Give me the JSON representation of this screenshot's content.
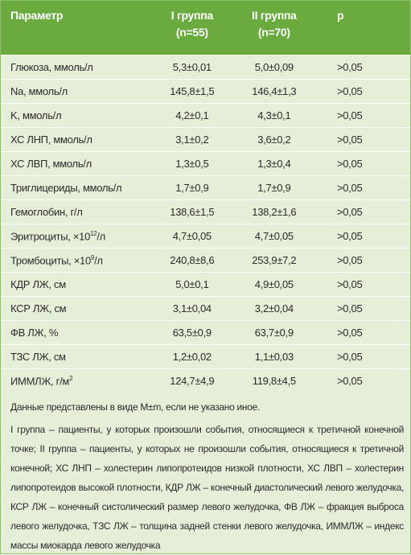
{
  "table": {
    "header": [
      "Параметр",
      "I группа",
      "(n=55)",
      "II группа",
      "(n=70)",
      "p"
    ],
    "rows": [
      [
        "Глюкоза, ммоль/л",
        "5,3±0,01",
        "5,0±0,09",
        ">0,05"
      ],
      [
        "Na, ммоль/л",
        "145,8±1,5",
        "146,4±1,3",
        ">0,05"
      ],
      [
        "K, ммоль/л",
        "4,2±0,1",
        "4,3±0,1",
        ">0,05"
      ],
      [
        "ХС ЛНП, ммоль/л",
        "3,1±0,2",
        "3,6±0,2",
        ">0,05"
      ],
      [
        "ХС ЛВП, ммоль/л",
        "1,3±0,5",
        "1,3±0,4",
        ">0,05"
      ],
      [
        "Триглицериды, ммоль/л",
        "1,7±0,9",
        "1,7±0,9",
        ">0,05"
      ],
      [
        "Гемоглобин, г/л",
        "138,6±1,5",
        "138,2±1,6",
        ">0,05"
      ],
      [
        {
          "base": "Эритроциты, ×10",
          "sup": "12",
          "tail": "/л"
        },
        "4,7±0,05",
        "4,7±0,05",
        ">0,05"
      ],
      [
        {
          "base": "Тромбоциты, ×10",
          "sup": "9",
          "tail": "/л"
        },
        "240,8±8,6",
        "253,9±7,2",
        ">0,05"
      ],
      [
        "КДР ЛЖ, см",
        "5,0±0,1",
        "4,9±0,05",
        ">0,05"
      ],
      [
        "КСР ЛЖ, см",
        "3,1±0,04",
        "3,2±0,04",
        ">0,05"
      ],
      [
        "ФВ ЛЖ, %",
        "63,5±0,9",
        "63,7±0,9",
        ">0,05"
      ],
      [
        "ТЗС ЛЖ, см",
        "1,2±0,02",
        "1,1±0,03",
        ">0,05"
      ],
      [
        {
          "base": "ИММЛЖ, г/м",
          "sup": "2",
          "tail": ""
        },
        "124,7±4,9",
        "119,8±4,5",
        ">0,05"
      ]
    ]
  },
  "notes": [
    "Данные представлены в виде M±m, если не указано иное.",
    "I группа – пациенты, у которых произошли события, относящиеся к третичной конечной точке; II группа – пациенты, у которых не произошли события, относящиеся к третичной конечной; ХС ЛНП – холестерин липопротеидов низкой плотности, ХС ЛВП – холестерин липопротеидов высокой плотности, КДР ЛЖ – конечный диастолический левого желудочка, КСР ЛЖ – конечный систолический размер левого желудочка, ФВ ЛЖ – фракция выброса левого желудочка, ТЗС ЛЖ – толщина задней стенки левого желудочка, ИММЛЖ – индекс массы миокарда левого желудочка"
  ]
}
